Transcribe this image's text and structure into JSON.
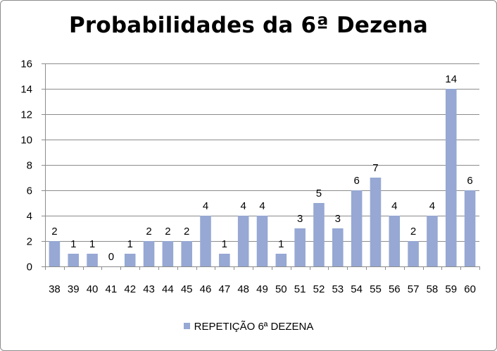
{
  "chart_data": {
    "type": "bar",
    "title": "Probabilidades da 6ª Dezena",
    "categories": [
      "38",
      "39",
      "40",
      "41",
      "42",
      "43",
      "44",
      "45",
      "46",
      "47",
      "48",
      "49",
      "50",
      "51",
      "52",
      "53",
      "54",
      "55",
      "56",
      "57",
      "58",
      "59",
      "60"
    ],
    "series": [
      {
        "name": "REPETIÇÃO 6ª DEZENA",
        "values": [
          2,
          1,
          1,
          0,
          1,
          2,
          2,
          2,
          4,
          1,
          4,
          4,
          1,
          3,
          5,
          3,
          6,
          7,
          4,
          2,
          4,
          14,
          6
        ]
      }
    ],
    "ylim": [
      0,
      16
    ],
    "yticks": [
      0,
      2,
      4,
      6,
      8,
      10,
      12,
      14,
      16
    ],
    "grid": true,
    "legend_position": "bottom",
    "bar_color": "#96a8d3",
    "grid_color": "#8c8c8c"
  }
}
